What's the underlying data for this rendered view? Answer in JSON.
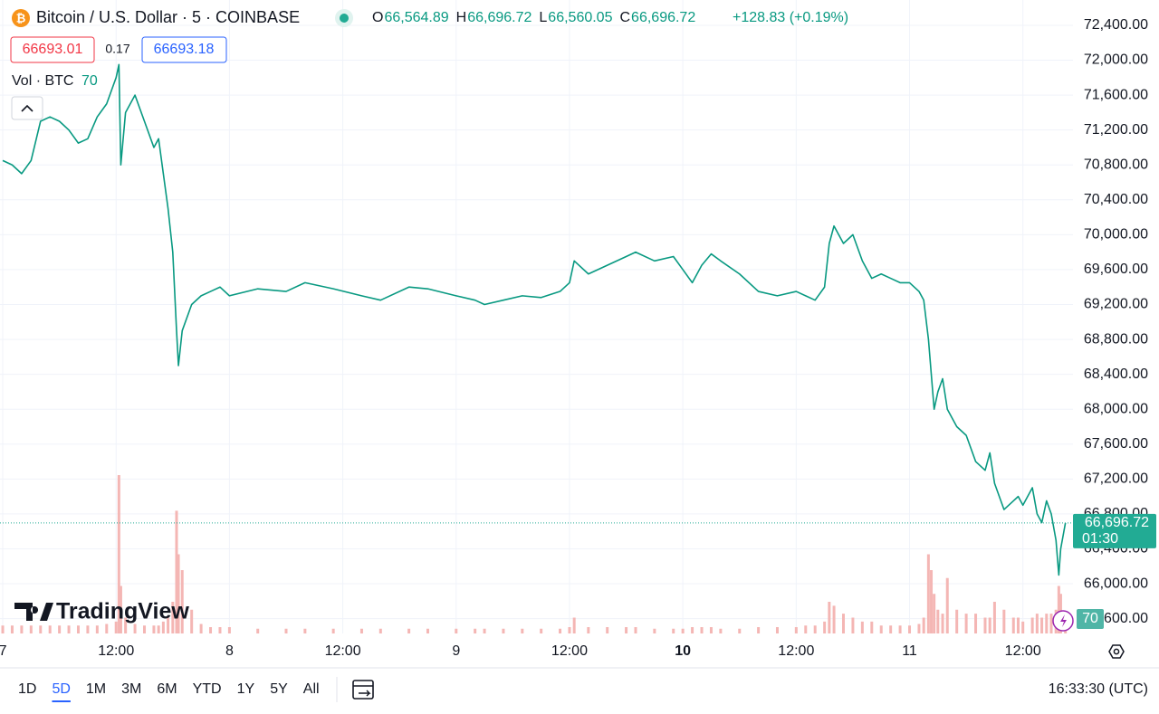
{
  "header": {
    "symbol": "Bitcoin / U.S. Dollar · 5 · COINBASE",
    "ohlc": [
      {
        "key": "O",
        "value": "66,564.89"
      },
      {
        "key": "H",
        "value": "66,696.72"
      },
      {
        "key": "L",
        "value": "66,560.05"
      },
      {
        "key": "C",
        "value": "66,696.72"
      }
    ],
    "change": "+128.83 (+0.19%)",
    "sell": "66693.01",
    "spread": "0.17",
    "buy": "66693.18",
    "volume_label": "Vol · BTC",
    "volume_value": "70"
  },
  "logo": "TradingView",
  "chart_data": {
    "type": "line",
    "x": [
      0,
      1,
      2,
      3,
      4,
      5,
      6,
      7,
      8,
      9,
      10,
      11,
      12,
      12.3,
      12.5,
      13,
      14,
      15,
      16,
      16.5,
      17,
      17.5,
      18,
      18.4,
      18.6,
      19,
      20,
      21,
      22,
      23,
      24,
      27,
      30,
      32,
      35,
      38,
      40,
      43,
      45,
      48,
      50,
      51,
      53,
      55,
      57,
      59,
      60,
      60.5,
      62,
      64,
      66,
      67,
      69,
      71,
      72,
      73,
      74,
      75,
      76,
      78,
      80,
      82,
      84,
      85,
      86,
      87,
      87.5,
      88,
      89,
      90,
      91,
      92,
      93,
      94,
      95,
      96,
      97,
      97.5,
      98,
      98.3,
      98.6,
      99,
      99.5,
      100,
      101,
      102,
      103,
      104,
      104.5,
      105,
      106,
      107,
      107.5,
      108,
      109,
      109.5,
      110,
      110.5,
      111,
      111.5,
      111.8,
      112,
      112.5
    ],
    "series": [
      {
        "color": "#089981",
        "values": [
          70850,
          70800,
          70700,
          70850,
          71300,
          71350,
          71300,
          71200,
          71050,
          71100,
          71350,
          71500,
          71800,
          71950,
          70800,
          71400,
          71600,
          71300,
          71000,
          71100,
          70700,
          70300,
          69800,
          68900,
          68500,
          68900,
          69200,
          69300,
          69350,
          69400,
          69300,
          69380,
          69350,
          69450,
          69380,
          69300,
          69250,
          69400,
          69380,
          69300,
          69250,
          69200,
          69250,
          69300,
          69280,
          69350,
          69450,
          69700,
          69550,
          69650,
          69750,
          69800,
          69700,
          69750,
          69600,
          69450,
          69650,
          69780,
          69700,
          69550,
          69350,
          69300,
          69350,
          69300,
          69250,
          69400,
          69900,
          70100,
          69900,
          70000,
          69700,
          69500,
          69550,
          69500,
          69450,
          69450,
          69350,
          69250,
          68800,
          68400,
          68000,
          68200,
          68350,
          68000,
          67800,
          67700,
          67400,
          67300,
          67500,
          67150,
          66850,
          66950,
          67000,
          66900,
          67100,
          66800,
          66700,
          66950,
          66800,
          66500,
          66100,
          66400,
          66697
        ]
      },
      {
        "color": "#f4b6b4",
        "axis": "y2",
        "values": [
          10,
          10,
          10,
          10,
          10,
          10,
          10,
          10,
          10,
          10,
          10,
          12,
          15,
          200,
          60,
          20,
          12,
          10,
          10,
          10,
          15,
          20,
          40,
          155,
          100,
          80,
          30,
          12,
          8,
          8,
          8,
          6,
          6,
          6,
          6,
          6,
          6,
          6,
          6,
          6,
          6,
          6,
          6,
          6,
          6,
          6,
          8,
          20,
          8,
          8,
          8,
          8,
          6,
          6,
          6,
          8,
          8,
          8,
          6,
          6,
          8,
          8,
          8,
          10,
          10,
          15,
          40,
          35,
          25,
          20,
          15,
          15,
          10,
          10,
          10,
          10,
          12,
          20,
          100,
          80,
          50,
          30,
          25,
          70,
          30,
          25,
          25,
          20,
          20,
          40,
          30,
          20,
          20,
          15,
          20,
          25,
          20,
          25,
          25,
          30,
          60,
          50,
          10
        ]
      }
    ],
    "xlim": [
      -0.29,
      113.3
    ],
    "ylim": [
      65430,
      72690
    ],
    "y2lim": [
      0,
      800
    ],
    "xticks": [
      {
        "value": 0,
        "label": "7"
      },
      {
        "value": 12,
        "label": "12:00"
      },
      {
        "value": 24,
        "label": "8"
      },
      {
        "value": 36,
        "label": "12:00"
      },
      {
        "value": 48,
        "label": "9"
      },
      {
        "value": 60,
        "label": "12:00"
      },
      {
        "value": 72,
        "label": "10"
      },
      {
        "value": 84,
        "label": "12:00"
      },
      {
        "value": 96,
        "label": "11"
      },
      {
        "value": 108,
        "label": "12:00"
      }
    ],
    "bold_xtick_index": 6,
    "yticks": [
      {
        "value": 65600,
        "label": "65,600.00"
      },
      {
        "value": 66000,
        "label": "66,000.00"
      },
      {
        "value": 66400,
        "label": "66,400.00"
      },
      {
        "value": 66800,
        "label": "66,800.00"
      },
      {
        "value": 67200,
        "label": "67,200.00"
      },
      {
        "value": 67600,
        "label": "67,600.00"
      },
      {
        "value": 68000,
        "label": "68,000.00"
      },
      {
        "value": 68400,
        "label": "68,400.00"
      },
      {
        "value": 68800,
        "label": "68,800.00"
      },
      {
        "value": 69200,
        "label": "69,200.00"
      },
      {
        "value": 69600,
        "label": "69,600.00"
      },
      {
        "value": 70000,
        "label": "70,000.00"
      },
      {
        "value": 70400,
        "label": "70,400.00"
      },
      {
        "value": 70800,
        "label": "70,800.00"
      },
      {
        "value": 71200,
        "label": "71,200.00"
      },
      {
        "value": 71600,
        "label": "71,600.00"
      },
      {
        "value": 72000,
        "label": "72,000.00"
      },
      {
        "value": 72400,
        "label": "72,400.00"
      }
    ],
    "grid": true,
    "last_price": {
      "value": 66696.72,
      "label": "66,696.72",
      "countdown": "01:30",
      "color": "#22ab94"
    },
    "volume_badge": "70"
  },
  "toolbar": {
    "ranges": [
      "1D",
      "5D",
      "1M",
      "3M",
      "6M",
      "YTD",
      "1Y",
      "5Y",
      "All"
    ],
    "active_index": 1,
    "clock": "16:33:30 (UTC)"
  }
}
